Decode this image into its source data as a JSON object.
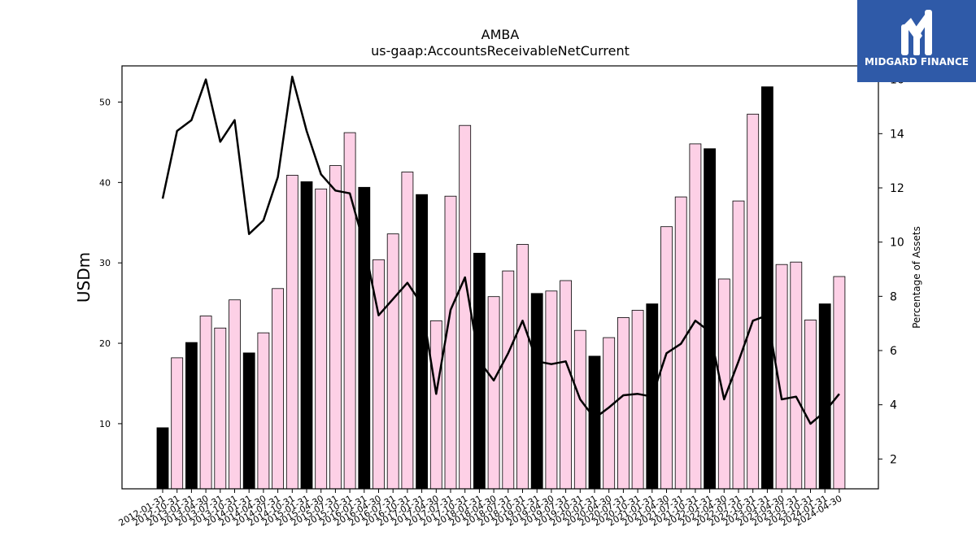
{
  "logo": {
    "text": "MIDGARD FINANCE",
    "background": "#2f5aa8"
  },
  "chart_data": {
    "type": "bar",
    "title": "AMBA",
    "subtitle": "us-gaap:AccountsReceivableNetCurrent",
    "ylabel": "USDm",
    "y2label": "Percentage of Assets",
    "ylim": [
      1.9,
      54.5
    ],
    "y2lim": [
      0.9,
      16.5
    ],
    "yticks": [
      10,
      20,
      30,
      40,
      50
    ],
    "y2ticks": [
      2,
      4,
      6,
      8,
      10,
      12,
      14,
      16
    ],
    "categories": [
      "2012-01-31",
      "2012-10-31",
      "2013-01-31",
      "2013-04-30",
      "2013-07-31",
      "2013-10-31",
      "2014-01-31",
      "2014-04-30",
      "2014-07-31",
      "2014-10-31",
      "2015-01-31",
      "2015-04-30",
      "2015-07-31",
      "2015-10-31",
      "2016-01-31",
      "2016-04-30",
      "2016-07-31",
      "2016-10-31",
      "2017-01-31",
      "2017-04-30",
      "2017-07-31",
      "2017-10-31",
      "2018-01-31",
      "2018-04-30",
      "2018-07-31",
      "2018-10-31",
      "2019-01-31",
      "2019-04-30",
      "2019-07-31",
      "2019-10-31",
      "2020-01-31",
      "2020-04-30",
      "2020-07-31",
      "2020-10-31",
      "2021-01-31",
      "2021-04-30",
      "2021-07-31",
      "2021-10-31",
      "2022-01-31",
      "2022-04-30",
      "2022-07-31",
      "2022-10-31",
      "2023-01-31",
      "2023-04-30",
      "2023-07-31",
      "2023-10-31",
      "2024-01-31",
      "2024-04-30"
    ],
    "series": [
      {
        "type": "bar",
        "values": [
          9.5,
          18.2,
          20.1,
          23.4,
          21.9,
          25.4,
          18.8,
          21.3,
          26.8,
          40.9,
          40.1,
          39.2,
          42.1,
          46.2,
          39.4,
          30.4,
          33.6,
          41.3,
          38.5,
          22.8,
          38.3,
          47.1,
          31.2,
          25.8,
          29.0,
          32.3,
          26.2,
          26.5,
          27.8,
          21.6,
          18.4,
          20.7,
          23.2,
          24.1,
          24.9,
          34.5,
          38.2,
          44.8,
          44.2,
          28.0,
          37.7,
          48.5,
          51.9,
          29.8,
          30.1,
          22.9,
          24.9,
          28.3
        ],
        "highlight_indices": [
          0,
          2,
          6,
          10,
          14,
          18,
          22,
          26,
          30,
          34,
          38,
          42,
          46
        ],
        "colors": {
          "fiscal_year_end": "#000000",
          "quarter": "#fdd0e6"
        }
      },
      {
        "type": "line",
        "axis": "right",
        "values": [
          11.6,
          14.1,
          14.5,
          16.0,
          13.7,
          14.5,
          10.3,
          10.8,
          12.4,
          16.1,
          14.1,
          12.5,
          11.9,
          11.8,
          9.9,
          7.3,
          7.9,
          8.5,
          7.7,
          4.4,
          7.5,
          8.7,
          5.6,
          4.9,
          5.9,
          7.1,
          5.6,
          5.5,
          5.6,
          4.2,
          3.5,
          3.9,
          4.35,
          4.4,
          4.3,
          5.9,
          6.25,
          7.1,
          6.7,
          4.2,
          5.6,
          7.1,
          7.3,
          4.2,
          4.3,
          3.3,
          3.75,
          4.4
        ],
        "color": "#000000"
      }
    ],
    "grid": false,
    "legend": "none"
  }
}
